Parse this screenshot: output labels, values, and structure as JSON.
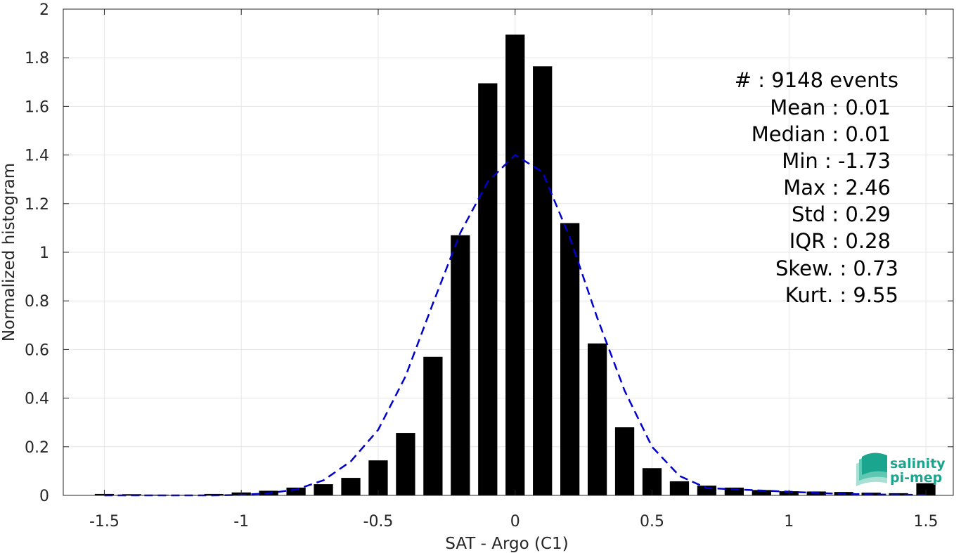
{
  "chart_data": {
    "type": "bar",
    "xlabel": "SAT - Argo (C1)",
    "ylabel": "Normalized histogram",
    "xlim": [
      -1.65,
      1.6
    ],
    "ylim": [
      0,
      2
    ],
    "grid": true,
    "xticks": [
      -1.5,
      -1,
      -0.5,
      0,
      0.5,
      1,
      1.5
    ],
    "xtick_labels": [
      "-1.5",
      "-1",
      "-0.5",
      "0",
      "0.5",
      "1",
      "1.5"
    ],
    "yticks": [
      0,
      0.2,
      0.4,
      0.6,
      0.8,
      1,
      1.2,
      1.4,
      1.6,
      1.8,
      2
    ],
    "ytick_labels": [
      "0",
      "0.2",
      "0.4",
      "0.6",
      "0.8",
      "1",
      "1.2",
      "1.4",
      "1.6",
      "1.8",
      "2"
    ],
    "bin_width": 0.1,
    "bar_color": "#000000",
    "bars": {
      "x": [
        -1.5,
        -1.4,
        -1.3,
        -1.2,
        -1.1,
        -1.0,
        -0.9,
        -0.8,
        -0.7,
        -0.6,
        -0.5,
        -0.4,
        -0.3,
        -0.2,
        -0.1,
        0.0,
        0.1,
        0.2,
        0.3,
        0.4,
        0.5,
        0.6,
        0.7,
        0.8,
        0.9,
        1.0,
        1.1,
        1.2,
        1.3,
        1.4,
        1.5
      ],
      "values": [
        0.006,
        0.005,
        0.003,
        0.002,
        0.006,
        0.012,
        0.019,
        0.032,
        0.046,
        0.072,
        0.144,
        0.257,
        0.57,
        1.07,
        1.695,
        1.895,
        1.765,
        1.12,
        0.625,
        0.28,
        0.112,
        0.058,
        0.04,
        0.032,
        0.022,
        0.017,
        0.016,
        0.014,
        0.011,
        0.009,
        0.05
      ]
    },
    "fit_curve": {
      "style": "dashed",
      "color": "#0000cc",
      "x": [
        -1.5,
        -1.4,
        -1.3,
        -1.2,
        -1.1,
        -1.0,
        -0.9,
        -0.8,
        -0.7,
        -0.6,
        -0.5,
        -0.4,
        -0.3,
        -0.2,
        -0.1,
        0.0,
        0.1,
        0.2,
        0.3,
        0.4,
        0.5,
        0.6,
        0.7,
        0.8,
        0.9,
        1.0,
        1.1,
        1.2,
        1.3,
        1.4,
        1.5
      ],
      "values": [
        0.0,
        0.0,
        0.0,
        0.0,
        0.0,
        0.002,
        0.009,
        0.024,
        0.062,
        0.14,
        0.27,
        0.49,
        0.79,
        1.08,
        1.29,
        1.4,
        1.33,
        1.06,
        0.73,
        0.43,
        0.2,
        0.08,
        0.03,
        0.025,
        0.02,
        0.015,
        0.01,
        0.006,
        0.004,
        0.003,
        0.002
      ]
    }
  },
  "stats": [
    {
      "label": "#  : 9148 events"
    },
    {
      "label": "Mean : 0.01"
    },
    {
      "label": "Median : 0.01"
    },
    {
      "label": "Min : -1.73"
    },
    {
      "label": "Max : 2.46"
    },
    {
      "label": "Std : 0.29"
    },
    {
      "label": "IQR : 0.28"
    },
    {
      "label": "Skew. : 0.73"
    },
    {
      "label": "Kurt. : 9.55"
    }
  ],
  "logo": {
    "line1": "salinity",
    "line2": "pi-mep",
    "color": "#1aa58f"
  }
}
